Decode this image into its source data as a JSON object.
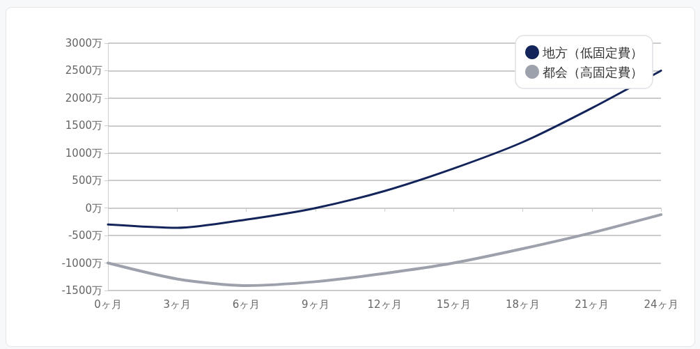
{
  "chart_data": {
    "type": "line",
    "categories": [
      "0ヶ月",
      "3ヶ月",
      "6ヶ月",
      "9ヶ月",
      "12ヶ月",
      "15ヶ月",
      "18ヶ月",
      "21ヶ月",
      "24ヶ月"
    ],
    "series": [
      {
        "name": "地方（低固定費）",
        "color": "#13245a",
        "values": [
          -300,
          -360,
          -210,
          0,
          310,
          720,
          1200,
          1820,
          2500
        ]
      },
      {
        "name": "都会（高固定費）",
        "color": "#9ca1ab",
        "values": [
          -1000,
          -1290,
          -1410,
          -1340,
          -1190,
          -1000,
          -740,
          -450,
          -120
        ]
      }
    ],
    "ylim": [
      -1500,
      3000
    ],
    "yticks": [
      {
        "value": -1500,
        "label": "-1500万"
      },
      {
        "value": -1000,
        "label": "-1000万"
      },
      {
        "value": -500,
        "label": "-500万"
      },
      {
        "value": 0,
        "label": "0万"
      },
      {
        "value": 500,
        "label": "500万"
      },
      {
        "value": 1000,
        "label": "1000万"
      },
      {
        "value": 1500,
        "label": "1500万"
      },
      {
        "value": 2000,
        "label": "2000万"
      },
      {
        "value": 2500,
        "label": "2500万"
      },
      {
        "value": 3000,
        "label": "3000万"
      }
    ],
    "grid": "y",
    "legend": "top right",
    "marker": "none",
    "line_style": "solid"
  }
}
